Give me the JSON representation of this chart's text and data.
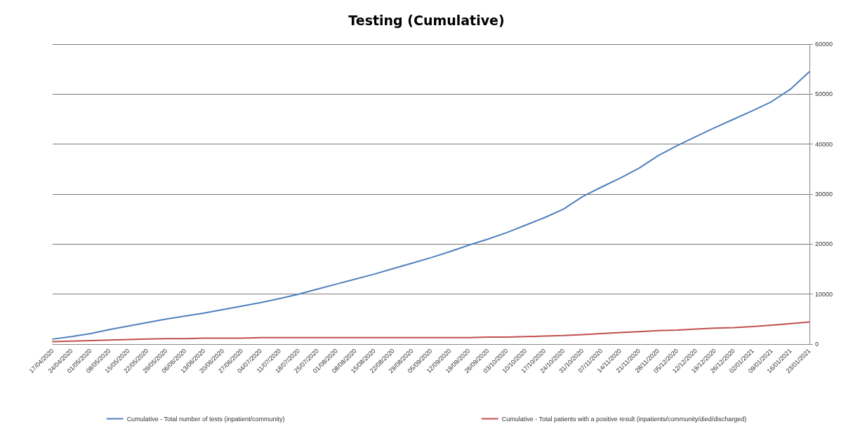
{
  "chart_data": {
    "type": "line",
    "title": "Testing (Cumulative)",
    "categories": [
      "17/04/2020",
      "24/04/2020",
      "01/05/2020",
      "08/05/2020",
      "15/05/2020",
      "22/05/2020",
      "29/05/2020",
      "06/06/2020",
      "13/06/2020",
      "20/06/2020",
      "27/06/2020",
      "04/07/2020",
      "11/07/2020",
      "18/07/2020",
      "25/07/2020",
      "01/08/2020",
      "08/08/2020",
      "15/08/2020",
      "22/08/2020",
      "29/08/2020",
      "05/09/2020",
      "12/09/2020",
      "19/09/2020",
      "26/09/2020",
      "03/10/2020",
      "10/10/2020",
      "17/10/2020",
      "24/10/2020",
      "31/10/2020",
      "07/11/2020",
      "14/11/2020",
      "21/11/2020",
      "28/11/2020",
      "05/12/2020",
      "12/12/2020",
      "19/12/2020",
      "26/12/2020",
      "02/01/2021",
      "09/01/2021",
      "16/01/2021",
      "23/01/2021"
    ],
    "series": [
      {
        "name": "Cumulative - Total number of tests (inpatient/community)",
        "color": "#4f81bd",
        "values": [
          1000,
          1500,
          2100,
          2900,
          3600,
          4300,
          5000,
          5600,
          6200,
          6900,
          7600,
          8300,
          9100,
          10000,
          11000,
          12000,
          13000,
          14000,
          15100,
          16200,
          17300,
          18500,
          19800,
          21000,
          22300,
          23800,
          25300,
          27000,
          29500,
          31400,
          33200,
          35200,
          37700,
          39700,
          41500,
          43300,
          45000,
          46700,
          48500,
          51000,
          54500
        ]
      },
      {
        "name": "Cumulative - Total patients with a positive result (inpatients/community/died/discharged)",
        "color": "#c0504d",
        "values": [
          500,
          600,
          700,
          800,
          900,
          1000,
          1100,
          1100,
          1200,
          1200,
          1200,
          1300,
          1300,
          1300,
          1300,
          1300,
          1300,
          1300,
          1300,
          1300,
          1300,
          1300,
          1300,
          1400,
          1400,
          1500,
          1600,
          1700,
          1900,
          2100,
          2300,
          2500,
          2700,
          2800,
          3000,
          3200,
          3300,
          3500,
          3800,
          4100,
          4400
        ]
      }
    ],
    "ylim": [
      0,
      60000
    ],
    "yticks": [
      0,
      10000,
      20000,
      30000,
      40000,
      50000,
      60000
    ],
    "grid": "y",
    "legend": "bottom",
    "marker": "none",
    "line_style": "solid"
  }
}
